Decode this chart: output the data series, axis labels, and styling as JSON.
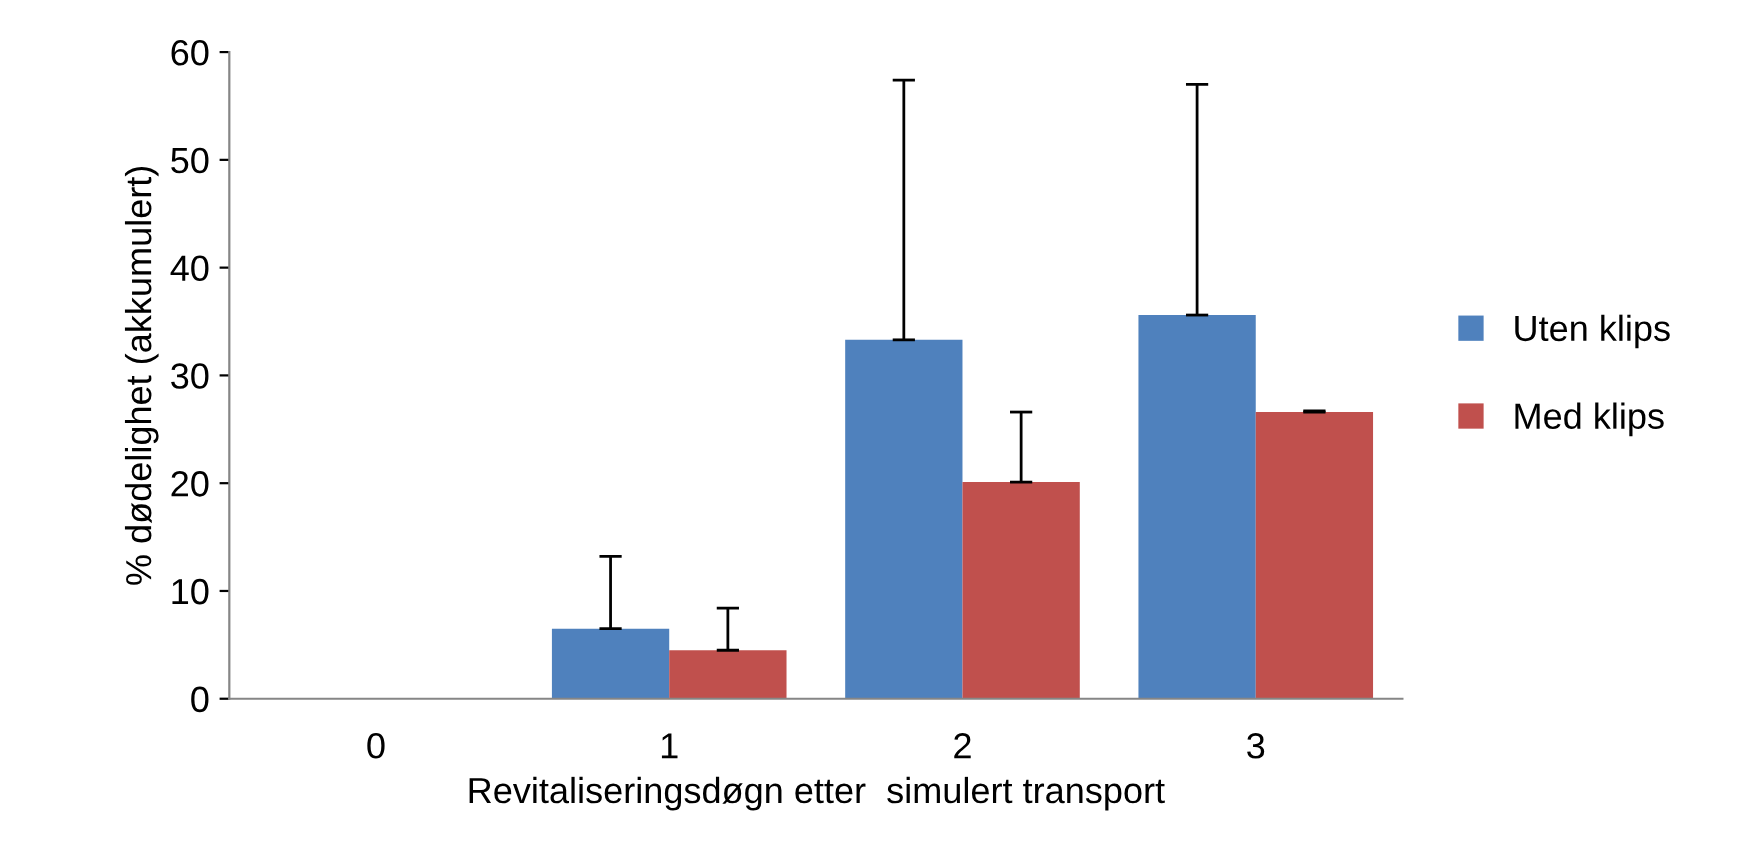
{
  "chart_data": {
    "type": "bar",
    "xlabel": "Revitaliseringsdøgn etter  simulert transport",
    "ylabel": "% dødelighet (akkumulert)",
    "categories": [
      "0",
      "1",
      "2",
      "3"
    ],
    "series": [
      {
        "name": "Uten klips",
        "color": "#4f81bd",
        "values": [
          0,
          6.5,
          33.3,
          35.6
        ],
        "errors": [
          null,
          [
            6.5,
            13.2
          ],
          [
            33.3,
            57.4
          ],
          [
            35.6,
            57.0
          ]
        ]
      },
      {
        "name": "Med klips",
        "color": "#c0504d",
        "values": [
          0,
          4.5,
          20.1,
          26.6
        ],
        "errors": [
          null,
          [
            4.5,
            8.4
          ],
          [
            20.1,
            26.6
          ],
          [
            26.6,
            26.7
          ]
        ]
      }
    ],
    "ylim": [
      0,
      60
    ],
    "yticks": [
      0,
      10,
      20,
      30,
      40,
      50,
      60
    ],
    "grid": false,
    "legend": "right"
  }
}
